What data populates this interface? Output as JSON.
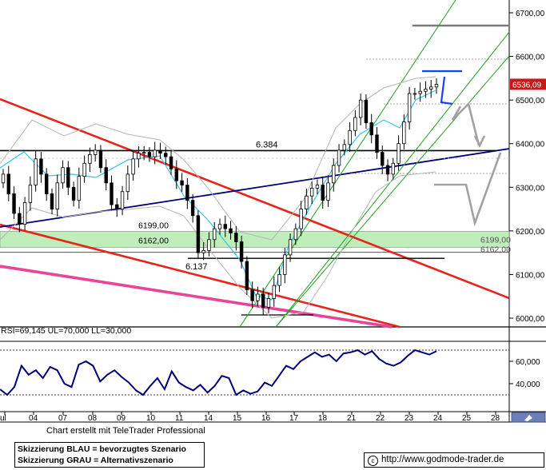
{
  "chart_data": [
    {
      "type": "line",
      "subtype": "candlestick price chart with hand-drawn scenario sketches",
      "y_axis": {
        "side": "right",
        "ticks": [
          6000,
          6100,
          6200,
          6300,
          6400,
          6500,
          6600,
          6700
        ],
        "tick_labels": [
          "6000,00",
          "6100,00",
          "6200,00",
          "6300,00",
          "6400,00",
          "6500,00",
          "6600,00",
          "6700,00"
        ],
        "ylim": [
          5985,
          6740
        ]
      },
      "x_axis": {
        "tick_labels": [
          "ul",
          "04",
          "07",
          "08",
          "09",
          "10",
          "11",
          "14",
          "15",
          "16",
          "17",
          "18",
          "21",
          "22",
          "23",
          "24",
          "25",
          "28"
        ]
      },
      "last_price": "6536,09",
      "price_levels": [
        {
          "label": "6.384",
          "value": 6384
        },
        {
          "label": "6199,00",
          "value": 6199
        },
        {
          "label": "6162,00",
          "value": 6162
        },
        {
          "label": "6.137",
          "value": 6137
        }
      ],
      "support_zone": [
        6162,
        6199
      ],
      "series": [
        {
          "values": [
            6330,
            6285,
            6240,
            6215,
            6265,
            6305,
            6365,
            6330,
            6285,
            6250,
            6310,
            6345,
            6300,
            6270,
            6325,
            6355,
            6375,
            6385,
            6345,
            6310,
            6260,
            6250,
            6290,
            6330,
            6365,
            6378,
            6380,
            6370,
            6385,
            6378,
            6370,
            6342,
            6315,
            6305,
            6270,
            6235,
            6150,
            6155,
            6180,
            6205,
            6215,
            6205,
            6195,
            6175,
            6130,
            6065,
            6040,
            6055,
            6025,
            6045,
            6075,
            6100,
            6145,
            6180,
            6205,
            6250,
            6280,
            6298,
            6305,
            6270,
            6310,
            6350,
            6385,
            6398,
            6430,
            6460,
            6500,
            6448,
            6420,
            6380,
            6350,
            6330,
            6355,
            6400,
            6450,
            6515,
            6515,
            6520,
            6525,
            6530,
            6536
          ]
        }
      ]
    },
    {
      "type": "line",
      "title": "RSI=69,145 UL=70,000 LL=30,000",
      "y_axis": {
        "ticks": [
          40,
          60
        ],
        "tick_labels": [
          "40,000",
          "60,000"
        ],
        "ylim": [
          20,
          80
        ]
      },
      "upper_level": 70,
      "lower_level": 30,
      "series": [
        {
          "values": [
            35,
            30,
            37,
            56,
            48,
            52,
            45,
            55,
            52,
            40,
            37,
            57,
            60,
            56,
            42,
            48,
            52,
            46,
            41,
            34,
            30,
            38,
            45,
            35,
            51,
            41,
            37,
            34,
            39,
            32,
            38,
            47,
            45,
            30,
            34,
            31,
            33,
            41,
            38,
            47,
            56,
            53,
            60,
            64,
            68,
            64,
            66,
            60,
            67,
            68,
            70,
            66,
            69,
            62,
            58,
            56,
            59,
            65,
            70,
            68,
            66,
            69
          ]
        }
      ]
    }
  ],
  "legend": {
    "line1": "Skizzierung BLAU = bevorzugtes Szenario",
    "line2": "Skizzierung GRAU = Alternativszenario"
  },
  "credit": "Chart erstellt mit TeleTrader Professional",
  "website": "http://www.godmode-trader.de",
  "colors": {
    "support_zone": "#bfeebb",
    "trend_channel": "#e8231c",
    "support_trendline": "#00007a",
    "pink_line": "#e8449a",
    "uptrend_channel": "#1aa31a",
    "bollinger": "#b4b4b4",
    "moving_average": "#36c6e6",
    "scenario_blue": "#1a3ef0",
    "scenario_gray": "#a2a2a2",
    "rsi_line": "#00007a"
  },
  "icons": {
    "corner": "pen-icon",
    "site": "copyright-icon"
  }
}
